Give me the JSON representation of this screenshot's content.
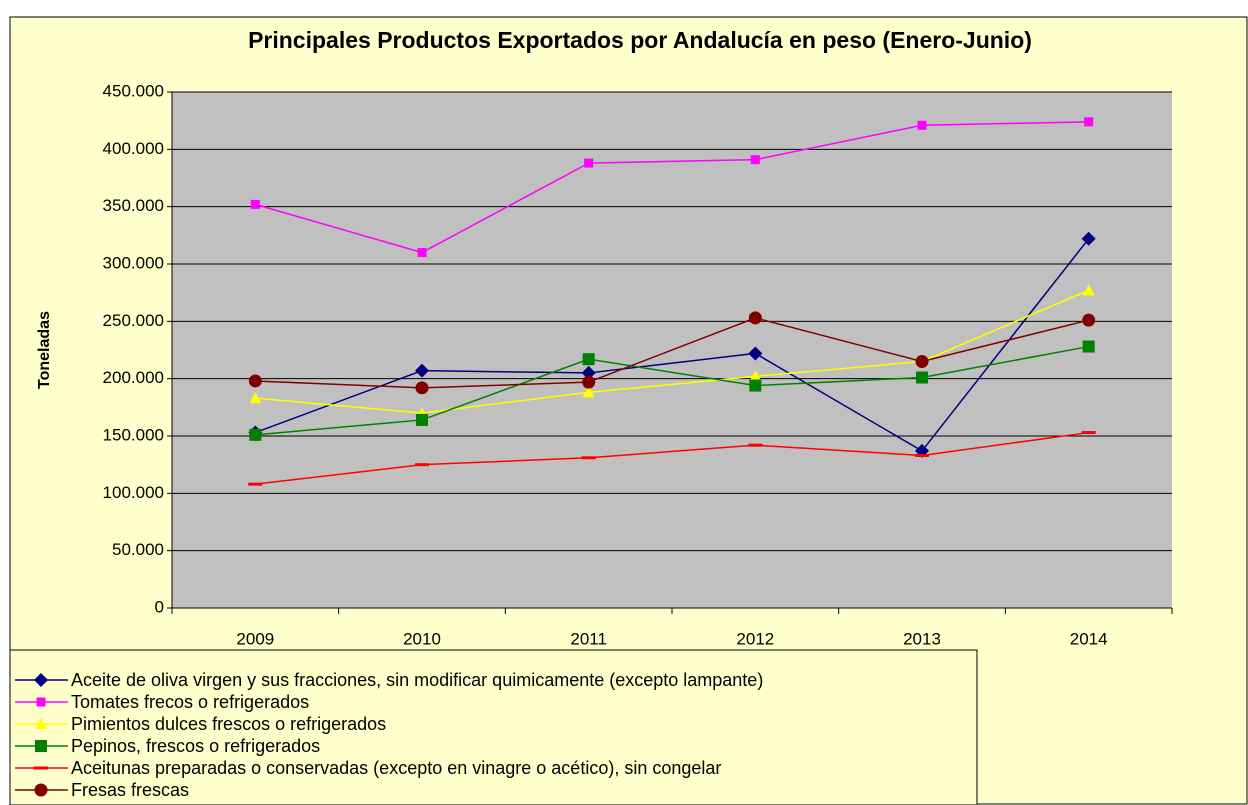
{
  "chart_data": {
    "type": "line",
    "title": "Principales Productos Exportados por Andalucía en peso (Enero-Junio)",
    "y_label": "Toneladas",
    "categories": [
      "2009",
      "2010",
      "2011",
      "2012",
      "2013",
      "2014"
    ],
    "ylim": [
      0,
      450000
    ],
    "yticks": [
      0,
      {
        "value": 50000,
        "label": "50.000"
      },
      {
        "value": 100000,
        "label": "100.000"
      },
      {
        "value": 150000,
        "label": "150.000"
      },
      {
        "value": 200000,
        "label": "200.000"
      },
      {
        "value": 250000,
        "label": "250.000"
      },
      {
        "value": 300000,
        "label": "300.000"
      },
      {
        "value": 350000,
        "label": "350.000"
      },
      {
        "value": 400000,
        "label": "400.000"
      },
      {
        "value": 450000,
        "label": "450.000"
      }
    ],
    "grid": true,
    "legend": "bottom-left",
    "series": [
      {
        "name": "Aceite de oliva virgen y sus fracciones, sin modificar quimicamente (excepto lampante)",
        "color": "#000080",
        "marker": "diamond",
        "values": [
          153000,
          207000,
          205000,
          222000,
          137000,
          322000
        ]
      },
      {
        "name": "Tomates frecos o refrigerados",
        "color": "#FF00FF",
        "marker": "square",
        "values": [
          352000,
          310000,
          388000,
          391000,
          421000,
          424000
        ]
      },
      {
        "name": "Pimientos dulces frescos o refrigerados",
        "color": "#FFFF00",
        "marker": "triangle",
        "values": [
          183000,
          170000,
          188000,
          202000,
          215000,
          277000
        ]
      },
      {
        "name": "Pepinos, frescos o refrigerados",
        "color": "#008000",
        "marker": "square",
        "values": [
          151000,
          164000,
          217000,
          194000,
          201000,
          228000
        ]
      },
      {
        "name": "Aceitunas preparadas o conservadas (excepto en vinagre o acético), sin congelar",
        "color": "#FF0000",
        "marker": "dash",
        "values": [
          108000,
          125000,
          131000,
          142000,
          133000,
          153000
        ]
      },
      {
        "name": "Fresas frescas",
        "color": "#800000",
        "marker": "circle",
        "values": [
          198000,
          192000,
          197000,
          253000,
          215000,
          251000
        ]
      }
    ]
  }
}
